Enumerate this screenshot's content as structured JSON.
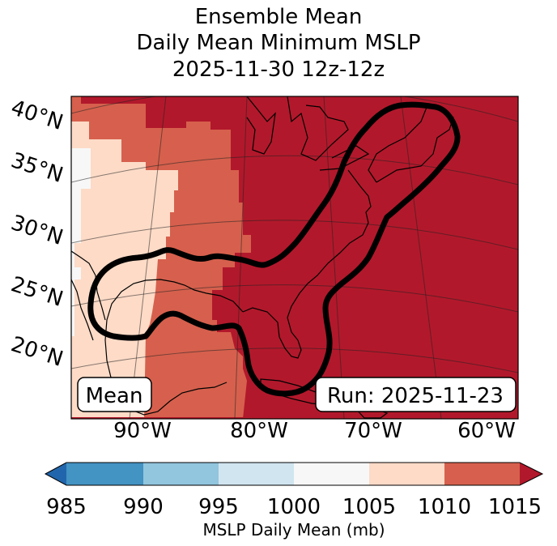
{
  "title": {
    "line1": "Ensemble Mean",
    "line2": "Daily Mean Minimum MSLP",
    "line3": "2025-11-30 12z-12z"
  },
  "map": {
    "lat_labels": [
      "40°N",
      "35°N",
      "30°N",
      "25°N",
      "20°N"
    ],
    "lon_labels": [
      "90°W",
      "80°W",
      "70°W",
      "60°W"
    ],
    "left_box": "Mean",
    "right_box": "Run: 2025-11-23"
  },
  "colorbar": {
    "ticks": [
      "985",
      "990",
      "995",
      "1000",
      "1005",
      "1010",
      "1015"
    ],
    "label": "MSLP Daily Mean (mb)",
    "colors": {
      "under": "#2166ac",
      "c985_990": "#4393c3",
      "c990_995": "#92c5de",
      "c995_1000": "#d1e5f0",
      "c1000_1005": "#f7f7f7",
      "c1005_1010": "#fddbc7",
      "c1010_1015": "#d6604d",
      "over": "#b2182b"
    }
  }
}
